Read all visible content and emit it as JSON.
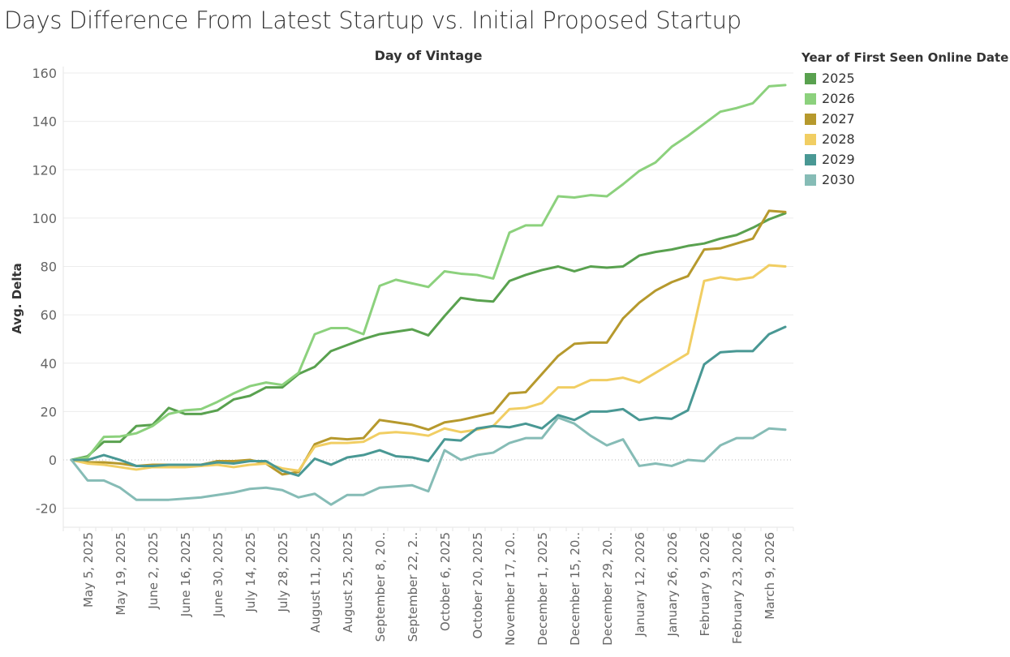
{
  "page_title": "Days Difference From Latest Startup vs. Initial Proposed Startup",
  "chart_data": {
    "type": "line",
    "title": "Days Difference From Latest Startup vs. Initial Proposed Startup",
    "xlabel": "Day of Vintage",
    "ylabel": "Avg. Delta",
    "ylim": [
      -28,
      160
    ],
    "yticks": [
      -20,
      0,
      20,
      40,
      60,
      80,
      100,
      120,
      140,
      160
    ],
    "grid": true,
    "zero_line": "dotted",
    "legend_position": "right",
    "legend_title": "Year of First Seen Online Date",
    "point_count": 45,
    "x_tick_labels": [
      {
        "index": 1,
        "label": "May 5, 2025"
      },
      {
        "index": 3,
        "label": "May 19, 2025"
      },
      {
        "index": 5,
        "label": "June 2, 2025"
      },
      {
        "index": 7,
        "label": "June 16, 2025"
      },
      {
        "index": 9,
        "label": "June 30, 2025"
      },
      {
        "index": 11,
        "label": "July 14, 2025"
      },
      {
        "index": 13,
        "label": "July 28, 2025"
      },
      {
        "index": 15,
        "label": "August 11, 2025"
      },
      {
        "index": 17,
        "label": "August 25, 2025"
      },
      {
        "index": 19,
        "label": "September 8, 20.."
      },
      {
        "index": 21,
        "label": "September 22, 2.."
      },
      {
        "index": 23,
        "label": "October 6, 2025"
      },
      {
        "index": 25,
        "label": "October 20, 2025"
      },
      {
        "index": 27,
        "label": "November 17, 20.."
      },
      {
        "index": 29,
        "label": "December 1, 2025"
      },
      {
        "index": 31,
        "label": "December 15, 20.."
      },
      {
        "index": 33,
        "label": "December 29, 20.."
      },
      {
        "index": 35,
        "label": "January 12, 2026"
      },
      {
        "index": 37,
        "label": "January 26, 2026"
      },
      {
        "index": 39,
        "label": "February 9, 2026"
      },
      {
        "index": 41,
        "label": "February 23, 2026"
      },
      {
        "index": 43,
        "label": "March 9, 2026"
      }
    ],
    "series": [
      {
        "name": "2025",
        "color": "#59a14f",
        "values": [
          0,
          1.5,
          7.5,
          7.5,
          14,
          14.5,
          21.5,
          19,
          19,
          20.5,
          25,
          26.5,
          30,
          30,
          35.5,
          38.5,
          45,
          47.5,
          50,
          52,
          53,
          54,
          51.5,
          59.5,
          67,
          66,
          65.5,
          74,
          76.5,
          78.5,
          80,
          78,
          80,
          79.5,
          80,
          84.5,
          86,
          87,
          88.5,
          89.5,
          91.5,
          93,
          96,
          99.5,
          102
        ]
      },
      {
        "name": "2026",
        "color": "#8cd17d",
        "values": [
          0,
          1,
          9.5,
          9.7,
          11,
          14,
          19,
          20.5,
          21,
          24,
          27.5,
          30.5,
          32,
          31,
          36,
          52,
          54.5,
          54.5,
          52,
          72,
          74.5,
          73,
          71.5,
          78,
          77,
          76.5,
          75,
          94,
          97,
          97,
          109,
          108.5,
          109.5,
          109,
          114,
          119.5,
          123,
          129.5,
          134,
          139,
          144,
          145.5,
          147.5,
          154.5,
          155
        ]
      },
      {
        "name": "2027",
        "color": "#b6992d",
        "values": [
          0,
          -1,
          -1,
          -1.5,
          -2.5,
          -2,
          -2,
          -2,
          -2,
          -0.5,
          -0.5,
          0,
          -1.5,
          -6,
          -5,
          6.5,
          9,
          8.5,
          9,
          16.5,
          15.5,
          14.5,
          12.5,
          15.5,
          16.5,
          18,
          19.5,
          27.5,
          28,
          35.5,
          43,
          48,
          48.5,
          48.5,
          58.5,
          65,
          70,
          73.5,
          76,
          87,
          87.5,
          89.5,
          91.5,
          103,
          102.5
        ]
      },
      {
        "name": "2028",
        "color": "#f1ce63",
        "values": [
          0,
          -1.5,
          -2,
          -3,
          -4,
          -3,
          -3,
          -3,
          -2.5,
          -2,
          -3,
          -2,
          -1.5,
          -3.5,
          -4.5,
          5.5,
          7,
          7,
          7.5,
          11,
          11.5,
          11,
          10,
          13,
          11.5,
          12.5,
          14,
          21,
          21.5,
          23.5,
          30,
          30,
          33,
          33,
          34,
          32,
          36,
          40,
          44,
          74,
          75.5,
          74.5,
          75.5,
          80.5,
          80
        ]
      },
      {
        "name": "2029",
        "color": "#499894",
        "values": [
          0,
          0,
          2,
          0,
          -2.5,
          -2.5,
          -2,
          -2,
          -2,
          -1,
          -1.5,
          -0.5,
          -0.5,
          -4.5,
          -6.5,
          0.5,
          -2,
          1,
          2,
          4,
          1.5,
          1,
          -0.5,
          8.5,
          8,
          13,
          14,
          13.5,
          15,
          13,
          18.5,
          16.5,
          20,
          20,
          21,
          16.5,
          17.5,
          17,
          20.5,
          39.5,
          44.5,
          45,
          45,
          52,
          55
        ]
      },
      {
        "name": "2030",
        "color": "#86bcb6",
        "values": [
          0,
          -8.5,
          -8.5,
          -11.5,
          -16.5,
          -16.5,
          -16.5,
          -16,
          -15.5,
          -14.5,
          -13.5,
          -12,
          -11.5,
          -12.5,
          -15.5,
          -14,
          -18.5,
          -14.5,
          -14.5,
          -11.5,
          -11,
          -10.5,
          -13,
          4,
          0,
          2,
          3,
          7,
          9,
          9,
          17.5,
          15,
          10,
          6,
          8.5,
          -2.5,
          -1.5,
          -2.5,
          0,
          -0.5,
          6,
          9,
          9,
          13,
          12.5
        ]
      }
    ]
  }
}
